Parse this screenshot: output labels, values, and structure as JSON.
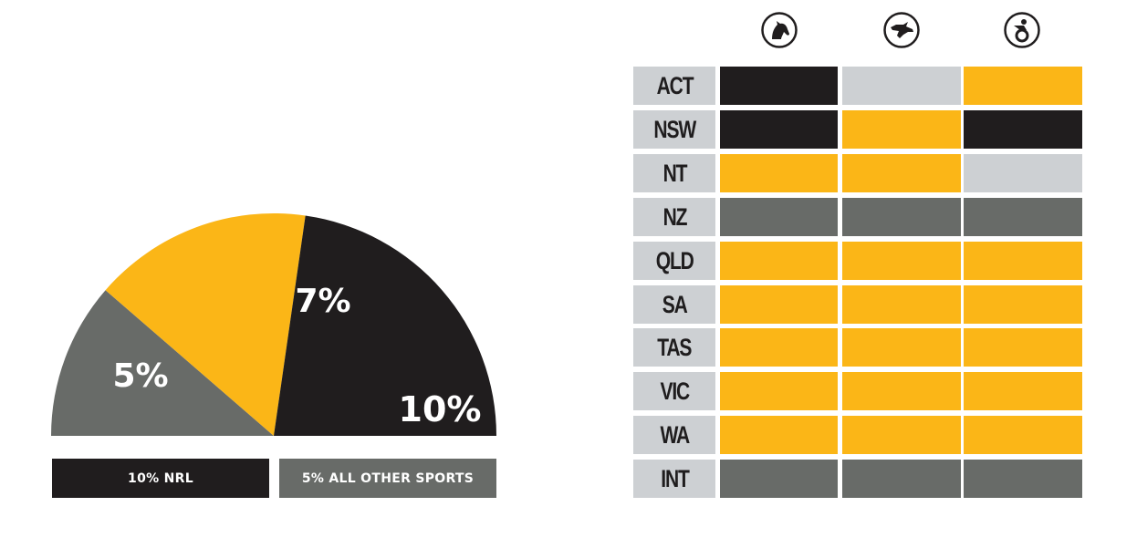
{
  "colors": {
    "black": "#201d1e",
    "yellow": "#fbb617",
    "dark_grey": "#686b68",
    "light_grey": "#cdd0d3",
    "white": "#ffffff"
  },
  "chart_data": [
    {
      "type": "pie",
      "subtype": "semicircle",
      "slices": [
        {
          "label": "5%",
          "value": 5,
          "color": "#686b68"
        },
        {
          "label": "7%",
          "value": 7,
          "color": "#fbb617"
        },
        {
          "label": "10%",
          "value": 10,
          "color": "#201d1e"
        }
      ],
      "legend": [
        {
          "text": "10% NRL",
          "color": "#201d1e"
        },
        {
          "text": "5% ALL OTHER SPORTS",
          "color": "#686b68"
        }
      ]
    },
    {
      "type": "table",
      "columns": [
        {
          "icon": "horse-head-icon"
        },
        {
          "icon": "greyhound-head-icon"
        },
        {
          "icon": "harness-racing-icon"
        }
      ],
      "rows": [
        {
          "label": "ACT",
          "cells": [
            "black",
            "light_grey",
            "yellow"
          ]
        },
        {
          "label": "NSW",
          "cells": [
            "black",
            "yellow",
            "black"
          ]
        },
        {
          "label": "NT",
          "cells": [
            "yellow",
            "yellow",
            "light_grey"
          ]
        },
        {
          "label": "NZ",
          "cells": [
            "dark_grey",
            "dark_grey",
            "dark_grey"
          ]
        },
        {
          "label": "QLD",
          "cells": [
            "yellow",
            "yellow",
            "yellow"
          ]
        },
        {
          "label": "SA",
          "cells": [
            "yellow",
            "yellow",
            "yellow"
          ]
        },
        {
          "label": "TAS",
          "cells": [
            "yellow",
            "yellow",
            "yellow"
          ]
        },
        {
          "label": "VIC",
          "cells": [
            "yellow",
            "yellow",
            "yellow"
          ]
        },
        {
          "label": "WA",
          "cells": [
            "yellow",
            "yellow",
            "yellow"
          ]
        },
        {
          "label": "INT",
          "cells": [
            "dark_grey",
            "dark_grey",
            "dark_grey"
          ]
        }
      ]
    }
  ]
}
